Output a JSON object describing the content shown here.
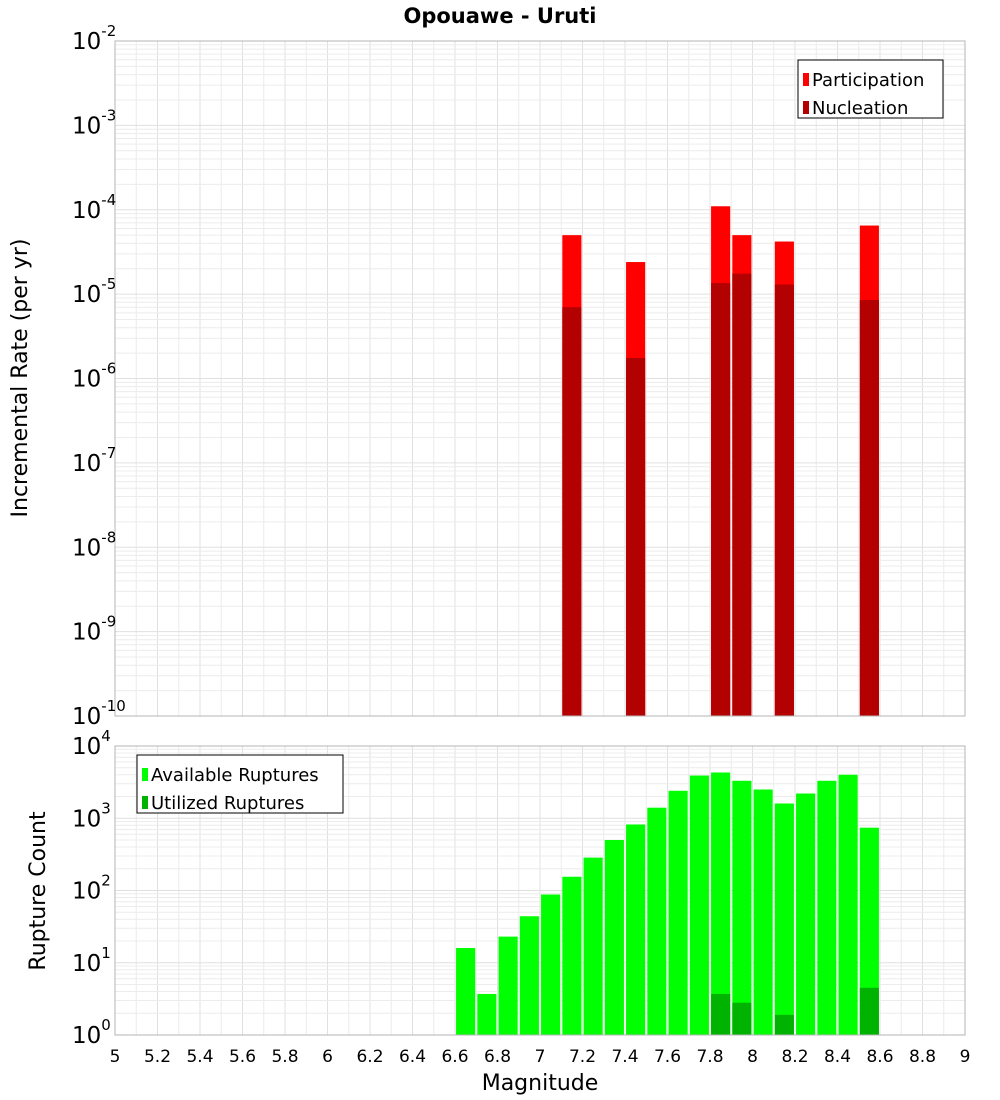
{
  "chart_data": [
    {
      "type": "bar",
      "title": "Opouawe - Uruti",
      "ylabel": "Incremental Rate (per yr)",
      "yscale": "log",
      "ylim_exp": [
        -10,
        -2
      ],
      "xlim": [
        5,
        9
      ],
      "grid": true,
      "legend_position": "top-right",
      "bar_width": 0.09,
      "series": [
        {
          "name": "Participation",
          "color": "#ff0000",
          "points": [
            [
              7.15,
              5e-05
            ],
            [
              7.45,
              2.4e-05
            ],
            [
              7.85,
              0.00011
            ],
            [
              7.95,
              5e-05
            ],
            [
              8.15,
              4.2e-05
            ],
            [
              8.55,
              6.5e-05
            ]
          ]
        },
        {
          "name": "Nucleation",
          "color": "#b30000",
          "points": [
            [
              7.15,
              7e-06
            ],
            [
              7.45,
              1.75e-06
            ],
            [
              7.85,
              1.35e-05
            ],
            [
              7.95,
              1.75e-05
            ],
            [
              8.15,
              1.3e-05
            ],
            [
              8.55,
              8.5e-06
            ]
          ]
        }
      ]
    },
    {
      "type": "bar",
      "xlabel": "Magnitude",
      "ylabel": "Rupture Count",
      "yscale": "log",
      "ylim_exp": [
        0,
        4
      ],
      "xlim": [
        5,
        9
      ],
      "grid": true,
      "legend_position": "top-left",
      "bar_width": 0.09,
      "x_ticks": [
        "5",
        "5.2",
        "5.4",
        "5.6",
        "5.8",
        "6",
        "6.2",
        "6.4",
        "6.6",
        "6.8",
        "7",
        "7.2",
        "7.4",
        "7.6",
        "7.8",
        "8",
        "8.2",
        "8.4",
        "8.6",
        "8.8",
        "9"
      ],
      "series": [
        {
          "name": "Available Ruptures",
          "color": "#00ff00",
          "points": [
            [
              6.65,
              16
            ],
            [
              6.75,
              3.7
            ],
            [
              6.85,
              23
            ],
            [
              6.95,
              44
            ],
            [
              7.05,
              88
            ],
            [
              7.15,
              155
            ],
            [
              7.25,
              285
            ],
            [
              7.35,
              500
            ],
            [
              7.45,
              820
            ],
            [
              7.55,
              1400
            ],
            [
              7.65,
              2400
            ],
            [
              7.75,
              3900
            ],
            [
              7.85,
              4300
            ],
            [
              7.95,
              3300
            ],
            [
              8.05,
              2500
            ],
            [
              8.15,
              1600
            ],
            [
              8.25,
              2200
            ],
            [
              8.35,
              3300
            ],
            [
              8.45,
              4000
            ],
            [
              8.55,
              740
            ]
          ]
        },
        {
          "name": "Utilized Ruptures",
          "color": "#00b300",
          "points": [
            [
              7.15,
              1
            ],
            [
              7.45,
              1
            ],
            [
              7.85,
              3.7
            ],
            [
              7.95,
              2.8
            ],
            [
              8.15,
              1.9
            ],
            [
              8.55,
              4.5
            ]
          ]
        }
      ]
    }
  ]
}
